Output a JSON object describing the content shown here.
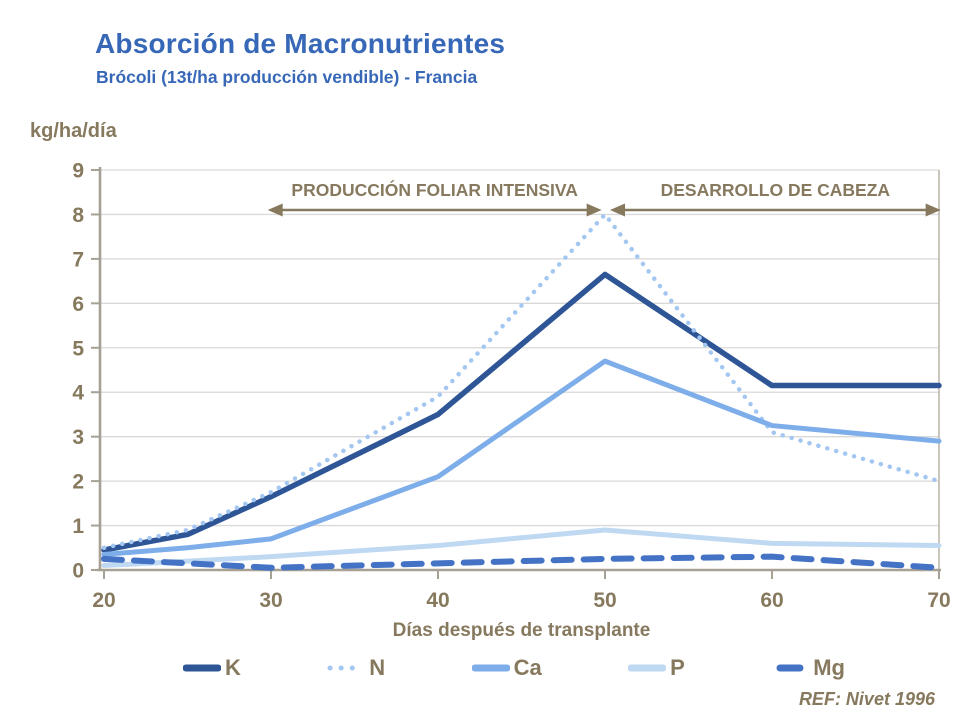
{
  "header": {
    "title": "Absorción de Macronutrientes",
    "subtitle": "Brócoli (13t/ha producción vendible) -  Francia"
  },
  "footer": {
    "ref": "REF: Nivet  1996"
  },
  "colors": {
    "title_blue": "#3767B7",
    "text_brown": "#86795E",
    "axis": "#A7A095",
    "gridline": "#D9D9D9"
  },
  "chart_data": {
    "type": "line",
    "title": "Absorción de Macronutrientes",
    "subtitle": "Brócoli (13t/ha producción vendible) - Francia",
    "xlabel": "Días después de transplante",
    "ylabel": "kg/ha/día",
    "xlim": [
      20,
      70
    ],
    "ylim": [
      0,
      9
    ],
    "xticks": [
      20,
      30,
      40,
      50,
      60,
      70
    ],
    "yticks": [
      0,
      1,
      2,
      3,
      4,
      5,
      6,
      7,
      8,
      9
    ],
    "grid": "horizontal",
    "legend_position": "bottom",
    "x": [
      20,
      25,
      30,
      40,
      50,
      60,
      70
    ],
    "series": [
      {
        "name": "K",
        "color": "#2E5596",
        "dash": "solid",
        "width": 5.5,
        "values": [
          0.45,
          0.8,
          1.65,
          3.5,
          6.65,
          4.15,
          4.15
        ]
      },
      {
        "name": "N",
        "color": "#A4C7F1",
        "dash": "dotted",
        "width": 4.5,
        "values": [
          0.5,
          0.9,
          1.75,
          3.9,
          8.0,
          3.1,
          2.0
        ]
      },
      {
        "name": "Ca",
        "color": "#7EAEEA",
        "dash": "solid",
        "width": 5,
        "values": [
          0.35,
          0.5,
          0.7,
          2.1,
          4.7,
          3.25,
          2.9
        ]
      },
      {
        "name": "P",
        "color": "#BFD9F2",
        "dash": "solid",
        "width": 5,
        "values": [
          0.1,
          0.2,
          0.3,
          0.55,
          0.9,
          0.6,
          0.55
        ]
      },
      {
        "name": "Mg",
        "color": "#4472C4",
        "dash": "dashed",
        "width": 6,
        "values": [
          0.25,
          0.15,
          0.05,
          0.15,
          0.25,
          0.3,
          0.05
        ]
      }
    ],
    "phases": [
      {
        "label": "PRODUCCIÓN FOLIAR INTENSIVA",
        "day_start": 29.8,
        "day_end": 49.8
      },
      {
        "label": "DESARROLLO DE CABEZA",
        "day_start": 50.3,
        "day_end": 70.1
      }
    ]
  }
}
